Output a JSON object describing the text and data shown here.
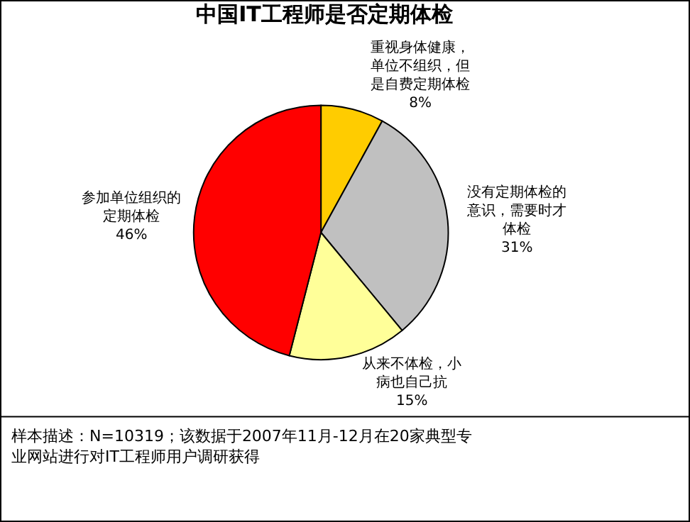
{
  "chart_data": {
    "type": "pie",
    "title": "中国IT工程师是否定期体检",
    "categories": [
      "重视身体健康，单位不组织，但是自费定期体检",
      "没有定期体检的意识，需要时才体检",
      "从来不体检，小病也自己抗",
      "参加单位组织的定期体检"
    ],
    "values": [
      8,
      31,
      15,
      46
    ],
    "value_labels": [
      "8%",
      "31%",
      "15%",
      "46%"
    ],
    "colors": [
      "#ffcc00",
      "#c0c0c0",
      "#ffff99",
      "#ff0000"
    ],
    "legend": false,
    "annotations": [
      "样本描述：N=10319；该数据于2007年11月-12月在20家典型专业网站进行对IT工程师用户调研获得"
    ]
  }
}
